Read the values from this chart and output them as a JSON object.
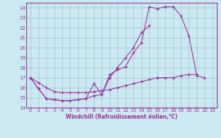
{
  "bg_color": "#cce8f0",
  "grid_color": "#a0c8d0",
  "line_color": "#993399",
  "xlabel": "Windchill (Refroidissement éolien,°C)",
  "xlim": [
    -0.5,
    23.5
  ],
  "ylim": [
    14,
    24.5
  ],
  "yticks": [
    14,
    15,
    16,
    17,
    18,
    19,
    20,
    21,
    22,
    23,
    24
  ],
  "xticks": [
    0,
    1,
    2,
    3,
    4,
    5,
    6,
    7,
    8,
    9,
    10,
    11,
    12,
    13,
    14,
    15,
    16,
    17,
    18,
    19,
    20,
    21,
    22,
    23
  ],
  "x_all": [
    0,
    1,
    2,
    3,
    4,
    5,
    6,
    7,
    8,
    9,
    10,
    11,
    12,
    13,
    14,
    15,
    16,
    17,
    18,
    19,
    20,
    21,
    22,
    23
  ],
  "line1_y": [
    17.0,
    15.9,
    14.9,
    14.8,
    14.7,
    14.7,
    14.8,
    14.9,
    16.4,
    15.3,
    17.3,
    17.8,
    18.1,
    19.5,
    20.5,
    24.1,
    23.9,
    24.1,
    24.1,
    23.2,
    21.2,
    17.2,
    17.0,
    null
  ],
  "line2_y": [
    17.0,
    15.9,
    14.9,
    14.8,
    14.7,
    14.7,
    14.8,
    14.9,
    15.2,
    15.3,
    17.0,
    18.0,
    19.0,
    20.0,
    21.5,
    22.2,
    null,
    null,
    null,
    null,
    null,
    null,
    null,
    null
  ],
  "line3_y": [
    17.0,
    16.5,
    16.0,
    15.6,
    15.5,
    15.5,
    15.5,
    15.5,
    15.6,
    15.7,
    15.8,
    16.0,
    16.2,
    16.4,
    16.6,
    16.8,
    17.0,
    17.0,
    17.0,
    17.2,
    17.3,
    17.3,
    null,
    null
  ]
}
